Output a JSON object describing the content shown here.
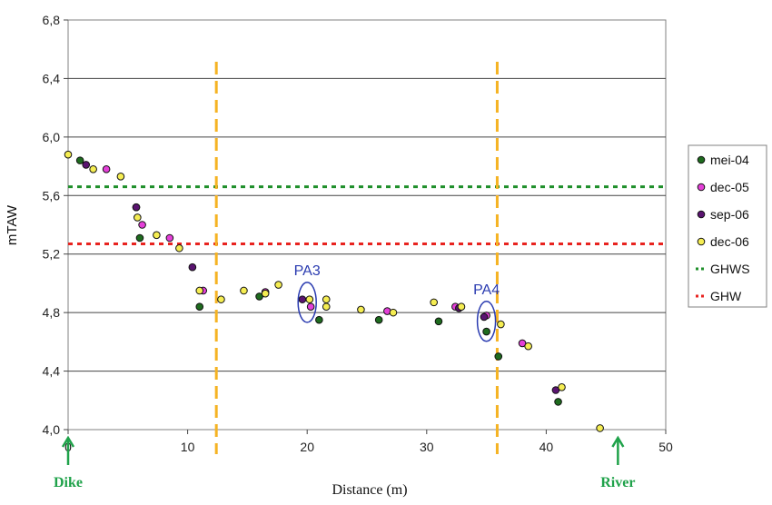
{
  "chart_data": {
    "type": "scatter",
    "xlabel": "Distance (m)",
    "ylabel": "mTAW",
    "xlim": [
      0,
      50
    ],
    "ylim": [
      4.0,
      6.8
    ],
    "x_ticks": [
      "0",
      "10",
      "20",
      "30",
      "40",
      "50"
    ],
    "y_ticks": [
      "4,0",
      "4,4",
      "4,8",
      "5,2",
      "5,6",
      "6,0",
      "6,4",
      "6,8"
    ],
    "grid": "horizontal",
    "legend_position": "right",
    "series": [
      {
        "name": "mei-04",
        "color": "#1e6b1e",
        "points": [
          [
            1.0,
            5.84
          ],
          [
            6.0,
            5.31
          ],
          [
            11.0,
            4.84
          ],
          [
            16.0,
            4.91
          ],
          [
            21.0,
            4.75
          ],
          [
            26.0,
            4.75
          ],
          [
            31.0,
            4.74
          ],
          [
            35.0,
            4.67
          ],
          [
            36.0,
            4.5
          ],
          [
            41.0,
            4.19
          ]
        ]
      },
      {
        "name": "dec-05",
        "color": "#e43fd8",
        "points": [
          [
            3.2,
            5.78
          ],
          [
            5.7,
            5.52
          ],
          [
            6.2,
            5.4
          ],
          [
            8.5,
            5.31
          ],
          [
            11.3,
            4.95
          ],
          [
            16.5,
            4.94
          ],
          [
            20.3,
            4.84
          ],
          [
            26.7,
            4.81
          ],
          [
            32.4,
            4.84
          ],
          [
            35.0,
            4.78
          ],
          [
            38.0,
            4.59
          ]
        ]
      },
      {
        "name": "sep-06",
        "color": "#5a1470",
        "points": [
          [
            1.5,
            5.81
          ],
          [
            5.7,
            5.52
          ],
          [
            10.4,
            5.11
          ],
          [
            19.6,
            4.89
          ],
          [
            32.7,
            4.83
          ],
          [
            34.8,
            4.77
          ],
          [
            40.8,
            4.27
          ]
        ]
      },
      {
        "name": "dec-06",
        "color": "#f5ed52",
        "points": [
          [
            0.0,
            5.88
          ],
          [
            2.1,
            5.78
          ],
          [
            4.4,
            5.73
          ],
          [
            5.8,
            5.45
          ],
          [
            7.4,
            5.33
          ],
          [
            9.3,
            5.24
          ],
          [
            11.0,
            4.95
          ],
          [
            12.8,
            4.89
          ],
          [
            14.7,
            4.95
          ],
          [
            16.5,
            4.93
          ],
          [
            17.6,
            4.99
          ],
          [
            20.2,
            4.89
          ],
          [
            21.6,
            4.89
          ],
          [
            21.6,
            4.84
          ],
          [
            24.5,
            4.82
          ],
          [
            27.2,
            4.8
          ],
          [
            30.6,
            4.87
          ],
          [
            32.9,
            4.84
          ],
          [
            36.2,
            4.72
          ],
          [
            38.5,
            4.57
          ],
          [
            41.3,
            4.29
          ],
          [
            44.5,
            4.01
          ]
        ]
      }
    ],
    "reference_lines": [
      {
        "name": "GHWS",
        "y": 5.66,
        "color": "#1e8f2a"
      },
      {
        "name": "GHW",
        "y": 5.27,
        "color": "#e8231f"
      }
    ],
    "vertical_lines": [
      {
        "x": 12.4,
        "color": "#f5b323"
      },
      {
        "x": 35.9,
        "color": "#f5b323"
      }
    ],
    "annotations": [
      {
        "text": "PA3",
        "x": 20.0,
        "y": 4.87
      },
      {
        "text": "PA4",
        "x": 35.0,
        "y": 4.74
      }
    ],
    "end_labels": [
      {
        "text": "Dike",
        "x": 0
      },
      {
        "text": "River",
        "x": 46
      }
    ]
  }
}
